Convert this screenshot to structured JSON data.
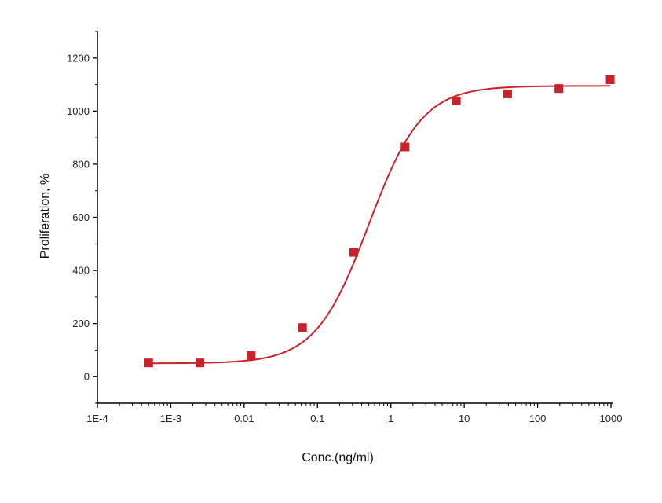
{
  "chart_data": {
    "type": "scatter",
    "xlabel": "Conc.(ng/ml)",
    "ylabel": "Proliferation, %",
    "x_scale": "log",
    "xlim": [
      0.0001,
      1000
    ],
    "ylim": [
      -100,
      1300
    ],
    "x_ticks": [
      "1E-4",
      "1E-3",
      "0.01",
      "0.1",
      "1",
      "10",
      "100",
      "1000"
    ],
    "y_ticks": [
      "0",
      "200",
      "400",
      "600",
      "800",
      "1000",
      "1200"
    ],
    "grid": false,
    "legend": "none",
    "series": [
      {
        "color": "#c8232a",
        "marker": "square",
        "points": [
          {
            "x": 0.0005,
            "y": 52
          },
          {
            "x": 0.0025,
            "y": 52
          },
          {
            "x": 0.0125,
            "y": 80
          },
          {
            "x": 0.0625,
            "y": 185
          },
          {
            "x": 0.3125,
            "y": 468
          },
          {
            "x": 1.5625,
            "y": 865
          },
          {
            "x": 7.8125,
            "y": 1038
          },
          {
            "x": 39.0625,
            "y": 1065
          },
          {
            "x": 195.3125,
            "y": 1085
          },
          {
            "x": 976.5625,
            "y": 1118
          }
        ]
      }
    ],
    "fit_curve": {
      "model": "4PL",
      "color": "#c8232a",
      "bottom": 50,
      "top": 1095,
      "ec50": 0.5,
      "hill": 1.2,
      "x_range": [
        0.0005,
        976.5625
      ]
    }
  }
}
